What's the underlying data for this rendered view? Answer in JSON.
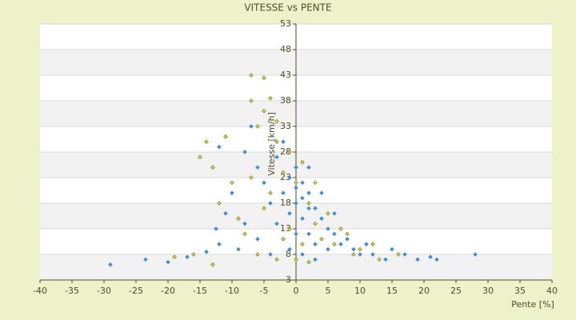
{
  "chart_data": {
    "type": "scatter",
    "title": "VITESSE vs PENTE",
    "x_label": "Pente [%]",
    "y_label": "Vitesse [km/h]",
    "xlim": [
      -40,
      40
    ],
    "ylim": [
      3,
      53
    ],
    "xticks": [
      -40,
      -35,
      -30,
      -25,
      -20,
      -15,
      -10,
      -5,
      0,
      5,
      10,
      15,
      20,
      25,
      30,
      35,
      40
    ],
    "yticks": [
      3,
      8,
      13,
      18,
      23,
      28,
      33,
      38,
      43,
      48,
      53
    ],
    "grid": true,
    "series": [
      {
        "color": "#3b8fd8",
        "x": [
          -29,
          -23.5,
          -20,
          -17,
          -14,
          -12,
          -12.5,
          -11,
          -10,
          -12,
          -8,
          -6,
          -5,
          -4,
          -3,
          -2,
          -1,
          0,
          0,
          1,
          1,
          2,
          2,
          3,
          3,
          4,
          5,
          6,
          7,
          8,
          9,
          10,
          11,
          12,
          14,
          15,
          17,
          19,
          21,
          22,
          28,
          -1,
          0,
          1,
          -6,
          -8,
          -3,
          2,
          4,
          6,
          -2,
          -7,
          5,
          3,
          -4,
          -9,
          0,
          1,
          2,
          -1
        ],
        "values": [
          6,
          7,
          6.5,
          7.5,
          8.5,
          10,
          13,
          16,
          20,
          29,
          28,
          25,
          22,
          18,
          14,
          20,
          23,
          25,
          18,
          22,
          15,
          20,
          12,
          17,
          10,
          15,
          13,
          12,
          10,
          11,
          9,
          8,
          10,
          8,
          7,
          9,
          8,
          7,
          7.5,
          7,
          8,
          9,
          12,
          8,
          11,
          14,
          27,
          25,
          20,
          16,
          30,
          33,
          9,
          7,
          8,
          9,
          21,
          19,
          17,
          16
        ]
      },
      {
        "color": "#7f8020",
        "x": [
          -7,
          -5,
          -7,
          -4,
          -5,
          -3,
          -6,
          -3,
          -11,
          -14,
          -15,
          -13,
          -10,
          -12,
          -9,
          -8,
          -16,
          -19,
          -13,
          -6,
          -4,
          -2,
          -1,
          0,
          1,
          2,
          3,
          4,
          5,
          6,
          7,
          8,
          9,
          10,
          12,
          13,
          16,
          -3,
          0,
          2,
          -1,
          -5,
          -7,
          -2,
          1,
          3
        ],
        "values": [
          43,
          42.5,
          38,
          38.5,
          36,
          34,
          33,
          30,
          31,
          30,
          27,
          25,
          22,
          18,
          15,
          12,
          8,
          7.5,
          6,
          8,
          20,
          24,
          28,
          22,
          26,
          18,
          14,
          11,
          16,
          10,
          13,
          12,
          8,
          9,
          10,
          7,
          8,
          7,
          7,
          6.5,
          13,
          17,
          23,
          11,
          10,
          22
        ]
      }
    ]
  }
}
